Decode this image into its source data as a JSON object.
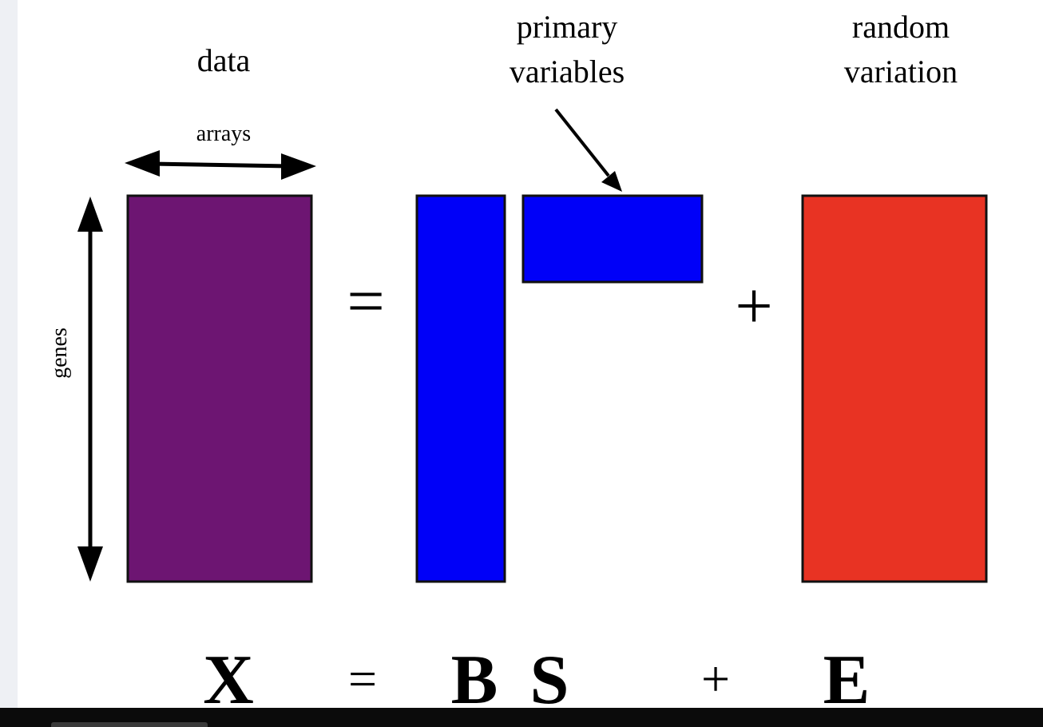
{
  "labels": {
    "data": "data",
    "primary_variables_line1": "primary",
    "primary_variables_line2": "variables",
    "random_variation_line1": "random",
    "random_variation_line2": "variation",
    "arrays": "arrays",
    "genes": "genes"
  },
  "operators": {
    "equals": "=",
    "plus": "+"
  },
  "equation": {
    "x": "X",
    "equals": "=",
    "b": "B",
    "s": "S",
    "plus": "+",
    "e": "E"
  },
  "colors": {
    "data_matrix": "#6d1572",
    "primary_matrices": "#0000f8",
    "random_matrix": "#e83323",
    "outline": "#111111"
  }
}
